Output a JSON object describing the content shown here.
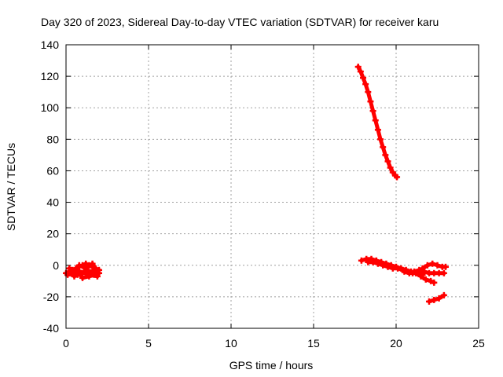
{
  "chart_data": {
    "type": "scatter",
    "title": "Day 320 of 2023, Sidereal Day-to-day VTEC variation (SDTVAR) for receiver karu",
    "xlabel": "GPS time / hours",
    "ylabel": "SDTVAR / TECUs",
    "xlim": [
      0,
      25
    ],
    "ylim": [
      -40,
      140
    ],
    "xticks": [
      0,
      5,
      10,
      15,
      20,
      25
    ],
    "yticks": [
      -40,
      -20,
      0,
      20,
      40,
      60,
      80,
      100,
      120,
      140
    ],
    "grid": true,
    "marker": "plus",
    "color": "#ff0000",
    "series": [
      {
        "x": [
          0.0,
          0.2,
          0.4,
          0.6,
          0.8,
          1.0,
          1.2,
          1.4,
          1.6,
          1.8,
          2.0,
          0.1,
          0.3,
          0.5,
          0.7,
          0.9,
          1.1,
          1.3,
          1.5,
          1.7,
          1.9,
          0.2,
          0.6,
          1.0,
          1.4,
          1.8,
          0.4,
          0.8,
          1.2,
          1.6,
          2.0
        ],
        "y": [
          -5,
          -4,
          -3,
          -2,
          -1,
          0,
          1,
          0,
          -1,
          -2,
          -3,
          -6,
          -5,
          -7,
          -6,
          -5,
          -4,
          -3,
          -5,
          -6,
          -7,
          -2,
          -3,
          -8,
          -7,
          -6,
          -4,
          0,
          -2,
          1,
          -5
        ]
      },
      {
        "x": [
          17.7,
          17.85,
          18.0,
          18.15,
          18.3,
          18.45,
          18.6,
          18.75,
          18.9,
          19.05,
          19.2,
          19.35,
          19.5,
          19.65,
          19.8,
          19.95,
          20.05
        ],
        "y": [
          126,
          123,
          119,
          115,
          110,
          104,
          98,
          92,
          86,
          80,
          75,
          70,
          66,
          62,
          59,
          57,
          56
        ]
      },
      {
        "x": [
          17.9,
          18.2,
          18.5,
          18.8,
          19.1,
          19.4,
          19.7,
          20.0,
          20.3,
          20.6,
          20.9,
          21.2,
          21.5,
          21.8,
          22.1,
          22.3
        ],
        "y": [
          3,
          4,
          4,
          3,
          2,
          1,
          0,
          -1,
          -2,
          -3,
          -4,
          -5,
          -7,
          -9,
          -10,
          -11
        ]
      },
      {
        "x": [
          18.3,
          18.6,
          18.9,
          19.2,
          19.5,
          19.8,
          20.1,
          20.4,
          20.7,
          21.0,
          21.3,
          21.6
        ],
        "y": [
          2,
          2,
          1,
          0,
          -1,
          -2,
          -2,
          -3,
          -4,
          -5,
          -5,
          -6
        ]
      },
      {
        "x": [
          20.5,
          20.8,
          21.1,
          21.4,
          21.7,
          22.0,
          22.3,
          22.6,
          22.9
        ],
        "y": [
          -4,
          -5,
          -4,
          -3,
          -4,
          -5,
          -5,
          -5,
          -5
        ]
      },
      {
        "x": [
          21.6,
          21.9,
          22.2,
          22.5,
          22.8,
          23.0
        ],
        "y": [
          -2,
          0,
          1,
          0,
          -1,
          -1
        ]
      },
      {
        "x": [
          22.0,
          22.3,
          22.6,
          22.9
        ],
        "y": [
          -23,
          -22,
          -21,
          -19
        ]
      }
    ]
  }
}
